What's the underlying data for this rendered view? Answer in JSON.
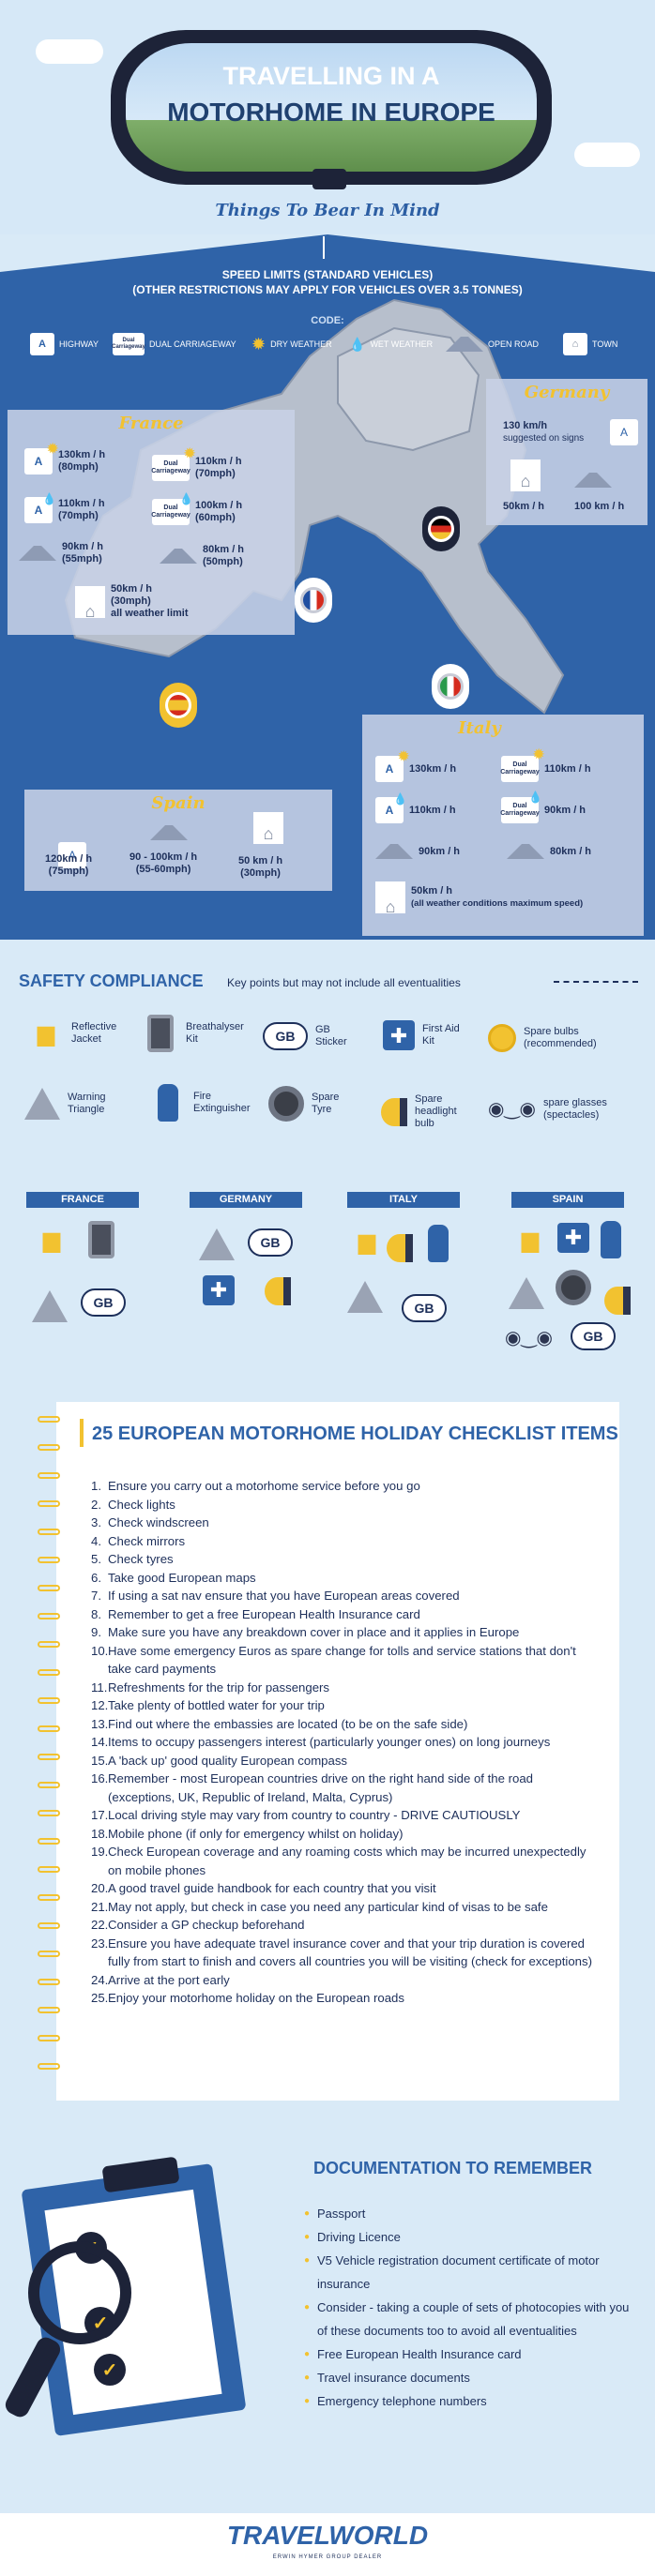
{
  "header": {
    "title_line1": "TRAVELLING IN A",
    "title_line2": "MOTORHOME IN EUROPE",
    "tagline": "Things To Bear In Mind"
  },
  "speed": {
    "title_line1": "SPEED LIMITS (STANDARD VEHICLES)",
    "title_line2": "(OTHER RESTRICTIONS MAY APPLY FOR VEHICLES OVER 3.5 TONNES)",
    "code_label": "CODE:",
    "codes": {
      "highway": "HIGHWAY",
      "dual": "DUAL CARRIAGEWAY",
      "dry": "DRY WEATHER",
      "wet": "WET WEATHER",
      "open": "OPEN ROAD",
      "town": "TOWN"
    },
    "dual_label": "Dual Carriageway"
  },
  "france": {
    "name": "France",
    "highway_dry": "130km / h\n(80mph)",
    "dual_dry": "110km / h\n(70mph)",
    "highway_wet": "110km / h\n(70mph)",
    "dual_wet": "100km / h\n(60mph)",
    "open_dry": "90km / h\n(55mph)",
    "open_wet": "80km / h\n(50mph)",
    "town": "50km / h\n(30mph)\nall weather limit"
  },
  "germany": {
    "name": "Germany",
    "highway": "130 km/h",
    "highway_note": "suggested on signs",
    "town": "50km / h",
    "open": "100 km / h"
  },
  "italy": {
    "name": "Italy",
    "highway_dry": "130km / h",
    "dual_dry": "110km / h",
    "highway_wet": "110km / h",
    "dual_wet": "90km / h",
    "open_dry": "90km / h",
    "open_wet": "80km / h",
    "town": "50km / h",
    "town_note": "(all weather conditions maximum speed)"
  },
  "spain": {
    "name": "Spain",
    "highway": "120km / h\n(75mph)",
    "dual": "90 - 100km / h\n(55-60mph)",
    "town": "50 km / h\n(30mph)"
  },
  "safety": {
    "title": "SAFETY COMPLIANCE",
    "subtitle": "Key points but may not include all eventualities",
    "items": {
      "jacket": "Reflective\nJacket",
      "breath": "Breathalyser\nKit",
      "gb": "GB\nSticker",
      "firstaid": "First Aid\nKit",
      "bulbs": "Spare bulbs\n(recommended)",
      "triangle": "Warning\nTriangle",
      "ext": "Fire\nExtinguisher",
      "tyre": "Spare\nTyre",
      "hlbulb": "Spare\nheadlight\nbulb",
      "glasses": "spare glasses\n(spectacles)"
    },
    "gb_text": "GB",
    "countries": [
      "FRANCE",
      "GERMANY",
      "ITALY",
      "SPAIN"
    ]
  },
  "checklist": {
    "title": "25 EUROPEAN MOTORHOME HOLIDAY CHECKLIST ITEMS",
    "items": [
      "Ensure you carry out a motorhome service before you go",
      "Check lights",
      "Check windscreen",
      "Check mirrors",
      "Check tyres",
      "Take good European maps",
      "If using a sat nav ensure that you have European areas covered",
      "Remember to get a free European Health Insurance card",
      "Make sure you have any breakdown cover in place and it applies in Europe",
      "Have some emergency Euros as spare change for tolls and service stations that don't take card payments",
      "Refreshments for the trip for passengers",
      "Take plenty of bottled water for your trip",
      "Find out where the embassies are located (to be on the safe side)",
      "Items to occupy passengers interest (particularly younger ones) on long journeys",
      "A 'back up' good quality European compass",
      "Remember - most European countries drive on the right hand side of the road (exceptions, UK, Republic of Ireland, Malta, Cyprus)",
      "Local driving style may vary from country to country - DRIVE CAUTIOUSLY",
      "Mobile phone (if only for emergency whilst on holiday)",
      "Check European coverage and any roaming costs which may be incurred unexpectedly on mobile phones",
      "A good travel guide handbook for each country that you visit",
      "May not apply, but check in case you need any particular kind of visas to be safe",
      "Consider a GP checkup beforehand",
      "Ensure you have adequate travel insurance cover and that your trip duration is covered fully from start to finish and covers all countries you will be visiting (check for exceptions)",
      "Arrive at the port early",
      "Enjoy your motorhome holiday on the European roads"
    ]
  },
  "documents": {
    "title": "DOCUMENTATION TO REMEMBER",
    "items": [
      "Passport",
      "Driving Licence",
      "V5 Vehicle registration document certificate of motor insurance",
      "Consider - taking a couple of sets of photocopies with you of these documents too to avoid all eventualities",
      "Free European Health Insurance card",
      "Travel insurance documents",
      "Emergency telephone numbers"
    ]
  },
  "footer": {
    "logo": "TRAVELWORLD",
    "sub": "ERWIN HYMER GROUP DEALER"
  }
}
